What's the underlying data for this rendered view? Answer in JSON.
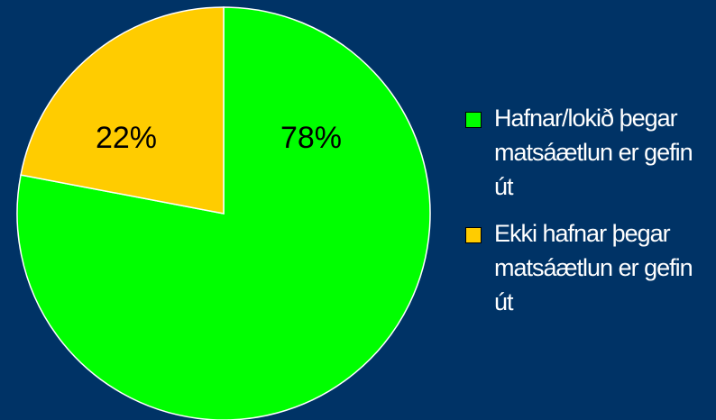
{
  "chart_data": {
    "type": "pie",
    "categories": [
      "Hafnar/lokið þegar matsáætlun er gefin út",
      "Ekki hafnar þegar matsáætlun er gefin út"
    ],
    "values": [
      78,
      22
    ],
    "value_labels": [
      "78%",
      "22%"
    ],
    "colors": [
      "#00ff00",
      "#ffcc00"
    ],
    "legend": "right"
  }
}
